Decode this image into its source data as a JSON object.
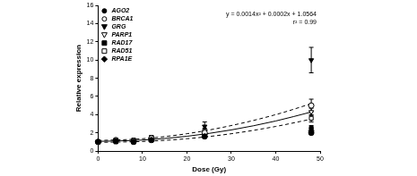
{
  "chart_data": {
    "type": "scatter",
    "x_label": "Dose (Gy)",
    "y_label": "Relative expression",
    "annotations": [
      "y = 0.0014x² + 0.0002x + 1.0564",
      "r² = 0.99"
    ],
    "x": [
      0,
      4,
      8,
      12,
      24,
      48
    ],
    "xlim": [
      0,
      50
    ],
    "xticks": [
      0,
      10,
      20,
      30,
      40,
      50
    ],
    "ylim": [
      0,
      16
    ],
    "yticks": [
      0,
      2,
      4,
      6,
      8,
      10,
      12,
      14,
      16
    ],
    "grid": false,
    "legend": "upper left",
    "series": [
      {
        "name": "AGO2",
        "color": "#000000",
        "marker": "circle",
        "values": [
          1.0,
          1.1,
          1.0,
          1.2,
          1.6,
          2.0
        ],
        "errors": [
          0.05,
          0.1,
          0.1,
          0.15,
          0.2,
          0.2
        ]
      },
      {
        "name": "BRCA1",
        "color": "#000000",
        "marker": "open_circle",
        "values": [
          1.0,
          1.2,
          1.1,
          1.4,
          2.0,
          5.0
        ],
        "errors": [
          0.05,
          0.1,
          0.15,
          0.2,
          0.3,
          0.7
        ]
      },
      {
        "name": "GRG",
        "color": "#000000",
        "marker": "triangle_down",
        "values": [
          1.0,
          1.1,
          1.0,
          1.3,
          2.7,
          10.0
        ],
        "errors": [
          0.05,
          0.15,
          0.2,
          0.3,
          0.5,
          1.4
        ]
      },
      {
        "name": "PARP1",
        "color": "#000000",
        "marker": "open_triangle_down",
        "values": [
          1.0,
          1.1,
          1.1,
          1.3,
          1.9,
          4.3
        ],
        "errors": [
          0.05,
          0.1,
          0.1,
          0.15,
          0.25,
          0.4
        ]
      },
      {
        "name": "RAD17",
        "color": "#000000",
        "marker": "square",
        "values": [
          1.0,
          1.0,
          1.0,
          1.2,
          1.7,
          2.5
        ],
        "errors": [
          0.05,
          0.1,
          0.1,
          0.15,
          0.2,
          0.3
        ]
      },
      {
        "name": "RAD51",
        "color": "#000000",
        "marker": "open_square",
        "values": [
          1.0,
          1.2,
          1.2,
          1.5,
          2.2,
          3.6
        ],
        "errors": [
          0.05,
          0.1,
          0.15,
          0.2,
          0.3,
          0.4
        ]
      },
      {
        "name": "RPA1E",
        "color": "#000000",
        "marker": "diamond",
        "values": [
          1.0,
          1.1,
          1.0,
          1.3,
          1.8,
          2.2
        ],
        "errors": [
          0.05,
          0.1,
          0.1,
          0.15,
          0.2,
          0.25
        ]
      },
      {
        "type": "line",
        "line_style": "solid",
        "color": "#000000",
        "x": [
          0,
          10,
          20,
          30,
          40,
          48
        ],
        "values": [
          1.06,
          1.2,
          1.62,
          2.32,
          3.3,
          4.29
        ]
      },
      {
        "type": "line",
        "line_style": "dashed",
        "color": "#000000",
        "x": [
          0,
          10,
          20,
          30,
          40,
          48
        ],
        "values": [
          1.15,
          1.35,
          1.9,
          2.8,
          4.0,
          5.2
        ]
      },
      {
        "type": "line",
        "line_style": "dashed",
        "color": "#000000",
        "x": [
          0,
          10,
          20,
          30,
          40,
          48
        ],
        "values": [
          0.95,
          1.05,
          1.35,
          1.9,
          2.7,
          3.5
        ]
      }
    ]
  }
}
